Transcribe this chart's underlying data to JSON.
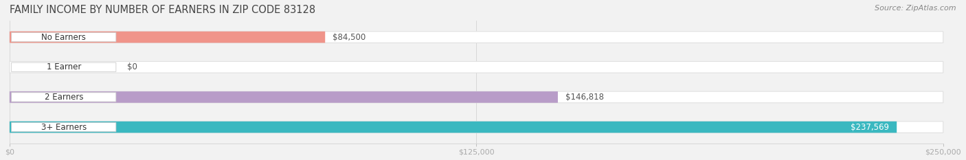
{
  "title": "FAMILY INCOME BY NUMBER OF EARNERS IN ZIP CODE 83128",
  "source": "Source: ZipAtlas.com",
  "categories": [
    "No Earners",
    "1 Earner",
    "2 Earners",
    "3+ Earners"
  ],
  "values": [
    84500,
    0,
    146818,
    237569
  ],
  "labels": [
    "$84,500",
    "$0",
    "$146,818",
    "$237,569"
  ],
  "bar_colors": [
    "#f0948a",
    "#a8c4e0",
    "#b89cc8",
    "#3ab8c0"
  ],
  "label_inside": [
    false,
    false,
    false,
    true
  ],
  "xmax": 250000,
  "xticks": [
    0,
    125000,
    250000
  ],
  "xticklabels": [
    "$0",
    "$125,000",
    "$250,000"
  ],
  "background_color": "#f2f2f2",
  "bar_bg_color": "#ffffff",
  "bar_bg_edge_color": "#e0e0e0",
  "title_fontsize": 10.5,
  "source_fontsize": 8,
  "label_fontsize": 8.5,
  "category_fontsize": 8.5,
  "tick_fontsize": 8
}
